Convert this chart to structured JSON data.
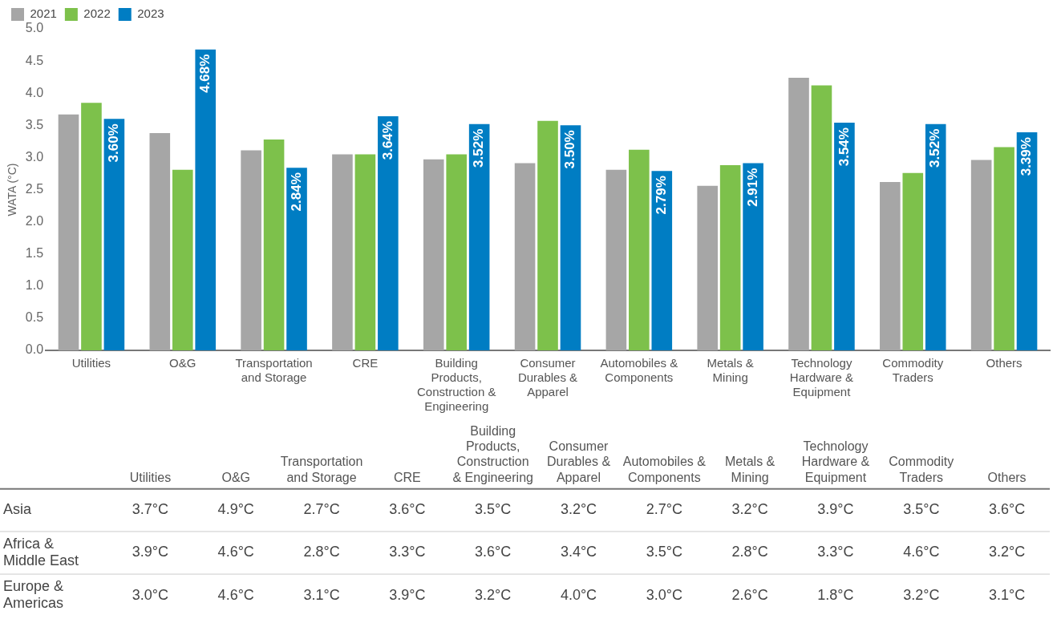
{
  "chart_data": [
    {
      "type": "bar",
      "ylabel": "WATA (°C)",
      "categories": [
        "Utilities",
        "O&G",
        "Transportation and Storage",
        "CRE",
        "Building Products, Construction & Engineering",
        "Consumer Durables & Apparel",
        "Automobiles & Components",
        "Metals & Mining",
        "Technology Hardware & Equipment",
        "Commodity Traders",
        "Others"
      ],
      "series": [
        {
          "name": "2021",
          "color": "#a6a6a6",
          "values": [
            3.67,
            3.38,
            3.11,
            3.05,
            2.97,
            2.91,
            2.81,
            2.56,
            4.24,
            2.62,
            2.96
          ]
        },
        {
          "name": "2022",
          "color": "#7dc14b",
          "values": [
            3.85,
            2.81,
            3.28,
            3.05,
            3.05,
            3.57,
            3.12,
            2.88,
            4.12,
            2.76,
            3.16
          ]
        },
        {
          "name": "2023",
          "color": "#007dc3",
          "values": [
            3.6,
            4.68,
            2.84,
            3.64,
            3.52,
            3.5,
            2.79,
            2.91,
            3.54,
            3.52,
            3.39
          ],
          "value_labels": [
            "3.60%",
            "4.68%",
            "2.84%",
            "3.64%",
            "3.52%",
            "3.50%",
            "2.79%",
            "2.91%",
            "3.54%",
            "3.52%",
            "3.39%"
          ]
        }
      ],
      "ylim": [
        0,
        5
      ],
      "yticks": [
        {
          "value": 0,
          "label": "0.0"
        },
        {
          "value": 0.5,
          "label": "0.5"
        },
        {
          "value": 1,
          "label": "1.0"
        },
        {
          "value": 1.5,
          "label": "1.5"
        },
        {
          "value": 2,
          "label": "2.0"
        },
        {
          "value": 2.5,
          "label": "2.5"
        },
        {
          "value": 3,
          "label": "3.0"
        },
        {
          "value": 3.5,
          "label": "3.5"
        },
        {
          "value": 4,
          "label": "4.0"
        },
        {
          "value": 4.5,
          "label": "4.5"
        },
        {
          "value": 5,
          "label": "5.0"
        }
      ],
      "legend": "top left"
    },
    {
      "type": "heatmap",
      "categories": [
        "Utilities",
        "O&G",
        "Transportation and Storage",
        "CRE",
        "Building Products, Construction & Engineering",
        "Consumer Durables & Apparel",
        "Automobiles & Components",
        "Metals & Mining",
        "Technology Hardware & Equipment",
        "Commodity Traders",
        "Others"
      ],
      "y_categories": [
        "Asia",
        "Africa & Middle East",
        "Europe & Americas"
      ],
      "cells": [
        [
          3.7,
          4.9,
          2.7,
          3.6,
          3.5,
          3.2,
          2.7,
          3.2,
          3.9,
          3.5,
          3.6
        ],
        [
          3.9,
          4.6,
          2.8,
          3.3,
          3.6,
          3.4,
          3.5,
          2.8,
          3.3,
          4.6,
          3.2
        ],
        [
          3.0,
          4.6,
          3.1,
          3.9,
          3.2,
          4.0,
          3.0,
          2.6,
          1.8,
          3.2,
          3.1
        ]
      ],
      "cell_labels": [
        [
          "3.7°C",
          "4.9°C",
          "2.7°C",
          "3.6°C",
          "3.5°C",
          "3.2°C",
          "2.7°C",
          "3.2°C",
          "3.9°C",
          "3.5°C",
          "3.6°C"
        ],
        [
          "3.9°C",
          "4.6°C",
          "2.8°C",
          "3.3°C",
          "3.6°C",
          "3.4°C",
          "3.5°C",
          "2.8°C",
          "3.3°C",
          "4.6°C",
          "3.2°C"
        ],
        [
          "3.0°C",
          "4.6°C",
          "3.1°C",
          "3.9°C",
          "3.2°C",
          "4.0°C",
          "3.0°C",
          "2.6°C",
          "1.8°C",
          "3.2°C",
          "3.1°C"
        ]
      ]
    }
  ]
}
